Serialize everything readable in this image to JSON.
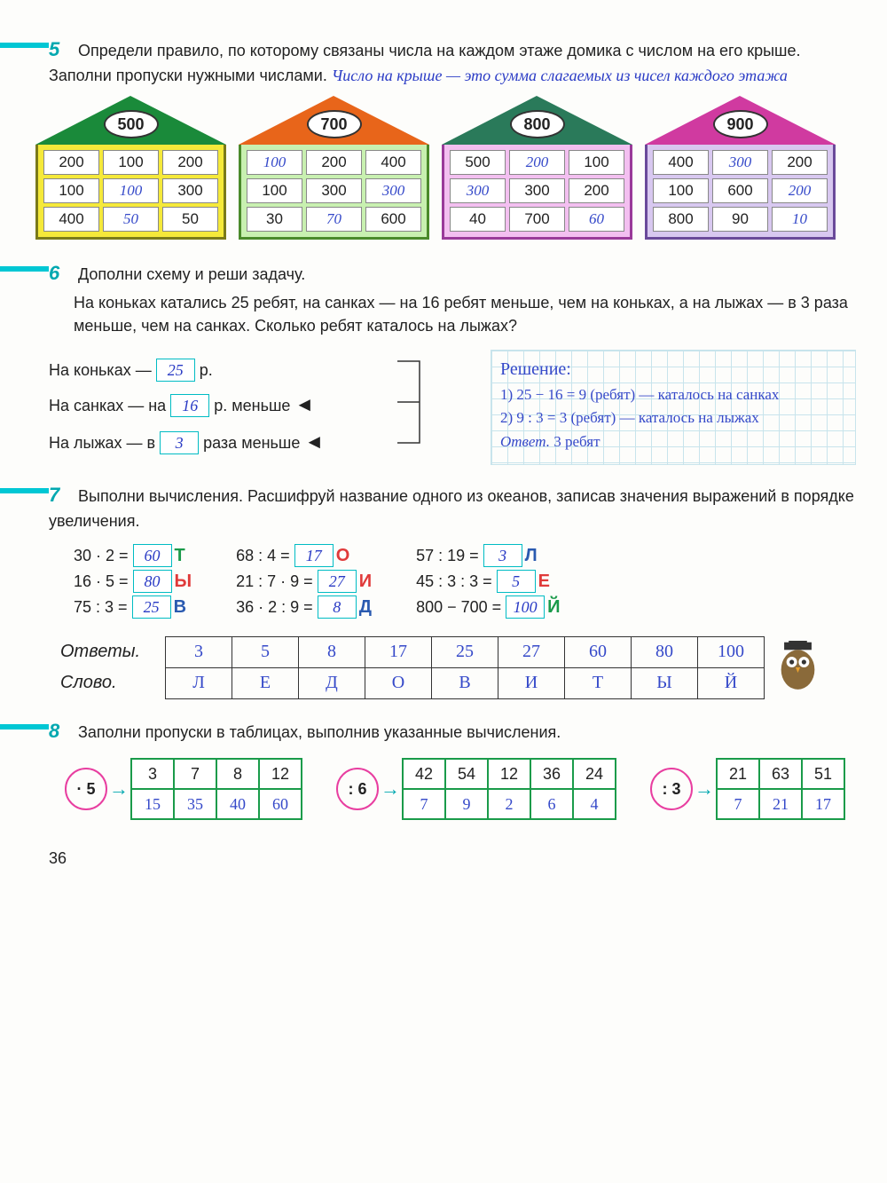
{
  "task5": {
    "num": "5",
    "text": "Определи правило, по которому связаны числа на каждом этаже домика с числом на его крыше. Заполни пропуски нужными числами.",
    "note_hw": "Число на крыше — это сумма слагаемых из чисел каждого этажа",
    "houses": [
      {
        "roof": "500",
        "roof_color": "#1a8a3a",
        "body_color": "#f5e93a",
        "border": "#7a7a1a",
        "cells": [
          "200",
          "100",
          "200",
          "100",
          "100",
          "300",
          "400",
          "50",
          "50"
        ],
        "hw_idx": [
          4,
          7
        ]
      },
      {
        "roof": "700",
        "roof_color": "#e8651a",
        "body_color": "#c8f0b0",
        "border": "#4a8a2a",
        "cells": [
          "100",
          "200",
          "400",
          "100",
          "300",
          "300",
          "30",
          "70",
          "600"
        ],
        "hw_idx": [
          0,
          5,
          7
        ]
      },
      {
        "roof": "800",
        "roof_color": "#2a7a5a",
        "body_color": "#f3bff0",
        "border": "#9a3a9a",
        "cells": [
          "500",
          "200",
          "100",
          "300",
          "300",
          "200",
          "40",
          "700",
          "60"
        ],
        "hw_idx": [
          1,
          3,
          8
        ]
      },
      {
        "roof": "900",
        "roof_color": "#d03aa0",
        "body_color": "#d8c8f0",
        "border": "#6a4a9a",
        "cells": [
          "400",
          "300",
          "200",
          "100",
          "600",
          "200",
          "800",
          "90",
          "10"
        ],
        "hw_idx": [
          1,
          5,
          8
        ]
      }
    ]
  },
  "task6": {
    "num": "6",
    "title": "Дополни схему и реши задачу.",
    "body": "На коньках катались 25 ребят, на санках — на 16 ребят меньше, чем на коньках, а на лыжах — в 3 раза меньше, чем на санках. Сколько ребят каталось на лыжах?",
    "l1a": "На коньках —",
    "l1v": "25",
    "l1b": "р.",
    "l2a": "На санках — на",
    "l2v": "16",
    "l2b": "р. меньше",
    "l3a": "На лыжах — в",
    "l3v": "3",
    "l3b": "раза меньше",
    "sol_h": "Решение:",
    "sol1": "1) 25 − 16 = 9 (ребят) — каталось на санках",
    "sol2": "2) 9 : 3 = 3 (ребят) — каталось на лыжах",
    "ans_l": "Ответ.",
    "ans_v": "3 ребят"
  },
  "task7": {
    "num": "7",
    "text": "Выполни вычисления. Расшифруй название одного из океанов, записав значения выражений в порядке увеличения.",
    "col1": [
      {
        "e": "30 · 2 =",
        "v": "60",
        "l": "Т",
        "c": "#1a9a4a"
      },
      {
        "e": "16 · 5 =",
        "v": "80",
        "l": "Ы",
        "c": "#e03a3a"
      },
      {
        "e": "75 : 3 =",
        "v": "25",
        "l": "В",
        "c": "#2a5ab0"
      }
    ],
    "col2": [
      {
        "e": "68 : 4 =",
        "v": "17",
        "l": "О",
        "c": "#e03a3a"
      },
      {
        "e": "21 : 7 · 9 =",
        "v": "27",
        "l": "И",
        "c": "#e03a3a"
      },
      {
        "e": "36 · 2 : 9 =",
        "v": "8",
        "l": "Д",
        "c": "#2a5ab0"
      }
    ],
    "col3": [
      {
        "e": "57 : 19 =",
        "v": "3",
        "l": "Л",
        "c": "#2a5ab0"
      },
      {
        "e": "45 : 3 : 3 =",
        "v": "5",
        "l": "Е",
        "c": "#e03a3a"
      },
      {
        "e": "800 − 700 =",
        "v": "100",
        "l": "Й",
        "c": "#1a9a4a"
      }
    ],
    "row_ans_l": "Ответы.",
    "row_word_l": "Слово.",
    "answers": [
      "3",
      "5",
      "8",
      "17",
      "25",
      "27",
      "60",
      "80",
      "100"
    ],
    "word": [
      "Л",
      "Е",
      "Д",
      "О",
      "В",
      "И",
      "Т",
      "Ы",
      "Й"
    ]
  },
  "task8": {
    "num": "8",
    "text": "Заполни пропуски в таблицах, выполнив указанные вычисления.",
    "g1": {
      "op": "· 5",
      "top": [
        "3",
        "7",
        "8",
        "12"
      ],
      "bot": [
        "15",
        "35",
        "40",
        "60"
      ]
    },
    "g2": {
      "op": ": 6",
      "top": [
        "42",
        "54",
        "12",
        "36",
        "24"
      ],
      "bot": [
        "7",
        "9",
        "2",
        "6",
        "4"
      ]
    },
    "g3": {
      "op": ": 3",
      "top": [
        "21",
        "63",
        "51"
      ],
      "bot": [
        "7",
        "21",
        "17"
      ]
    }
  },
  "page": "36"
}
